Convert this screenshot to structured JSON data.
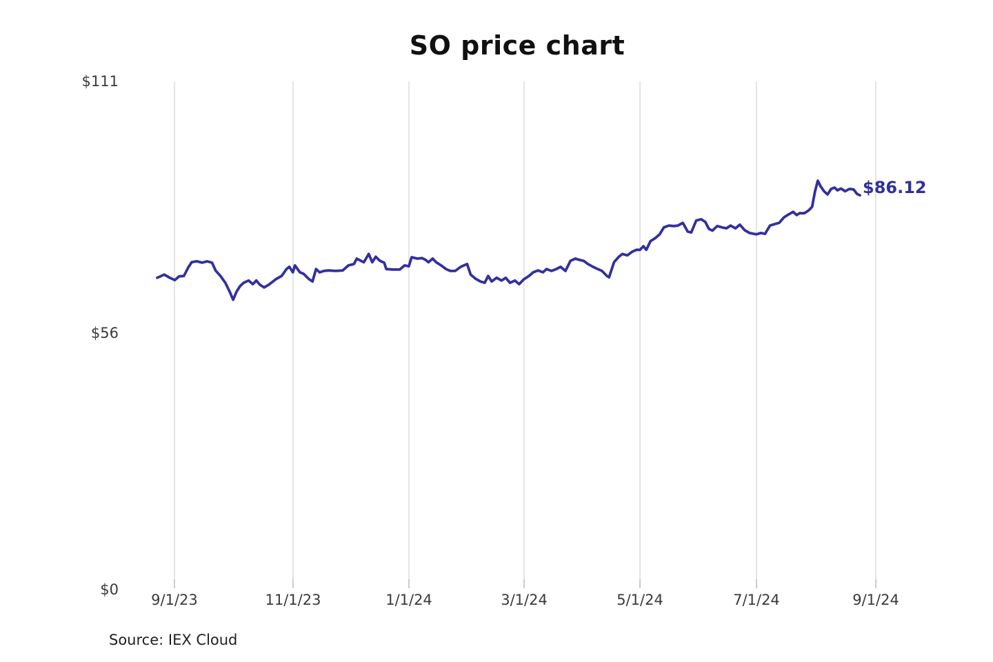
{
  "page": {
    "title": "SO price chart",
    "source": "Source: IEX Cloud"
  },
  "chart_data": {
    "type": "line",
    "title": "SO price chart",
    "source": "Source: IEX Cloud",
    "ticker": "SO",
    "line_color": "#32309e",
    "grid": "vertical-only",
    "gridline_color": "#cbcbcb",
    "tick_color": "#999999",
    "ylim": [
      0,
      111
    ],
    "y_ticks": [
      {
        "label": "$111",
        "value": 111
      },
      {
        "label": "$56",
        "value": 56
      },
      {
        "label": "$0",
        "value": 0
      }
    ],
    "x_ticks": [
      {
        "label": "9/1/23",
        "f": 0.0245
      },
      {
        "label": "11/1/23",
        "f": 0.1933
      },
      {
        "label": "1/1/24",
        "f": 0.3582
      },
      {
        "label": "3/1/24",
        "f": 0.5221
      },
      {
        "label": "5/1/24",
        "f": 0.687
      },
      {
        "label": "7/1/24",
        "f": 0.8528
      },
      {
        "label": "9/1/24",
        "f": 1.0226
      }
    ],
    "last_value": 86.12,
    "last_value_label": "$86.12",
    "series": [
      {
        "name": "SO price",
        "points": [
          [
            0.0,
            68.1
          ],
          [
            0.01,
            68.8
          ],
          [
            0.018,
            68.1
          ],
          [
            0.025,
            67.6
          ],
          [
            0.031,
            68.4
          ],
          [
            0.038,
            68.5
          ],
          [
            0.044,
            70.3
          ],
          [
            0.049,
            71.5
          ],
          [
            0.056,
            71.7
          ],
          [
            0.064,
            71.4
          ],
          [
            0.071,
            71.7
          ],
          [
            0.078,
            71.4
          ],
          [
            0.083,
            69.7
          ],
          [
            0.09,
            68.5
          ],
          [
            0.097,
            67.0
          ],
          [
            0.103,
            65.1
          ],
          [
            0.108,
            63.3
          ],
          [
            0.113,
            65.1
          ],
          [
            0.118,
            66.3
          ],
          [
            0.123,
            67.0
          ],
          [
            0.13,
            67.5
          ],
          [
            0.136,
            66.7
          ],
          [
            0.141,
            67.5
          ],
          [
            0.146,
            66.6
          ],
          [
            0.152,
            66.0
          ],
          [
            0.159,
            66.6
          ],
          [
            0.169,
            67.8
          ],
          [
            0.177,
            68.5
          ],
          [
            0.184,
            70.0
          ],
          [
            0.188,
            70.5
          ],
          [
            0.193,
            69.3
          ],
          [
            0.196,
            70.8
          ],
          [
            0.203,
            69.3
          ],
          [
            0.208,
            69.0
          ],
          [
            0.216,
            67.8
          ],
          [
            0.221,
            67.3
          ],
          [
            0.226,
            70.0
          ],
          [
            0.231,
            69.3
          ],
          [
            0.237,
            69.6
          ],
          [
            0.244,
            69.7
          ],
          [
            0.254,
            69.6
          ],
          [
            0.264,
            69.7
          ],
          [
            0.272,
            70.8
          ],
          [
            0.28,
            71.1
          ],
          [
            0.284,
            72.3
          ],
          [
            0.29,
            71.8
          ],
          [
            0.294,
            71.5
          ],
          [
            0.301,
            73.3
          ],
          [
            0.306,
            71.5
          ],
          [
            0.311,
            72.7
          ],
          [
            0.317,
            71.8
          ],
          [
            0.323,
            71.4
          ],
          [
            0.326,
            70.0
          ],
          [
            0.336,
            69.9
          ],
          [
            0.345,
            69.9
          ],
          [
            0.352,
            70.8
          ],
          [
            0.358,
            70.6
          ],
          [
            0.362,
            72.6
          ],
          [
            0.37,
            72.3
          ],
          [
            0.377,
            72.4
          ],
          [
            0.382,
            72.0
          ],
          [
            0.386,
            71.5
          ],
          [
            0.392,
            72.3
          ],
          [
            0.397,
            71.5
          ],
          [
            0.404,
            70.8
          ],
          [
            0.411,
            70.0
          ],
          [
            0.417,
            69.6
          ],
          [
            0.424,
            69.6
          ],
          [
            0.432,
            70.5
          ],
          [
            0.441,
            71.1
          ],
          [
            0.446,
            68.8
          ],
          [
            0.453,
            67.9
          ],
          [
            0.46,
            67.3
          ],
          [
            0.466,
            67.0
          ],
          [
            0.471,
            68.5
          ],
          [
            0.476,
            67.3
          ],
          [
            0.483,
            68.1
          ],
          [
            0.49,
            67.5
          ],
          [
            0.496,
            68.1
          ],
          [
            0.502,
            67.0
          ],
          [
            0.509,
            67.5
          ],
          [
            0.515,
            66.7
          ],
          [
            0.522,
            67.8
          ],
          [
            0.529,
            68.5
          ],
          [
            0.535,
            69.3
          ],
          [
            0.542,
            69.7
          ],
          [
            0.549,
            69.3
          ],
          [
            0.554,
            70.0
          ],
          [
            0.561,
            69.6
          ],
          [
            0.568,
            70.0
          ],
          [
            0.574,
            70.5
          ],
          [
            0.581,
            69.6
          ],
          [
            0.588,
            71.8
          ],
          [
            0.595,
            72.3
          ],
          [
            0.601,
            72.0
          ],
          [
            0.607,
            71.8
          ],
          [
            0.613,
            71.1
          ],
          [
            0.62,
            70.5
          ],
          [
            0.627,
            70.0
          ],
          [
            0.633,
            69.6
          ],
          [
            0.64,
            68.5
          ],
          [
            0.643,
            68.2
          ],
          [
            0.65,
            71.5
          ],
          [
            0.657,
            72.7
          ],
          [
            0.662,
            73.3
          ],
          [
            0.669,
            73.0
          ],
          [
            0.676,
            73.8
          ],
          [
            0.682,
            74.2
          ],
          [
            0.687,
            74.2
          ],
          [
            0.692,
            75.0
          ],
          [
            0.696,
            74.2
          ],
          [
            0.702,
            76.1
          ],
          [
            0.709,
            76.8
          ],
          [
            0.715,
            77.6
          ],
          [
            0.721,
            79.1
          ],
          [
            0.728,
            79.5
          ],
          [
            0.735,
            79.4
          ],
          [
            0.741,
            79.5
          ],
          [
            0.748,
            80.1
          ],
          [
            0.755,
            78.2
          ],
          [
            0.76,
            78.0
          ],
          [
            0.767,
            80.6
          ],
          [
            0.774,
            80.9
          ],
          [
            0.78,
            80.3
          ],
          [
            0.785,
            78.8
          ],
          [
            0.79,
            78.4
          ],
          [
            0.797,
            79.4
          ],
          [
            0.804,
            79.1
          ],
          [
            0.81,
            78.9
          ],
          [
            0.816,
            79.5
          ],
          [
            0.823,
            78.9
          ],
          [
            0.829,
            79.7
          ],
          [
            0.836,
            78.5
          ],
          [
            0.843,
            77.9
          ],
          [
            0.849,
            77.7
          ],
          [
            0.853,
            77.6
          ],
          [
            0.859,
            77.9
          ],
          [
            0.865,
            77.7
          ],
          [
            0.872,
            79.5
          ],
          [
            0.878,
            79.8
          ],
          [
            0.885,
            80.1
          ],
          [
            0.892,
            81.3
          ],
          [
            0.898,
            81.9
          ],
          [
            0.905,
            82.5
          ],
          [
            0.91,
            81.8
          ],
          [
            0.914,
            82.2
          ],
          [
            0.921,
            82.2
          ],
          [
            0.927,
            82.8
          ],
          [
            0.932,
            83.6
          ],
          [
            0.936,
            86.9
          ],
          [
            0.94,
            89.3
          ],
          [
            0.944,
            88.1
          ],
          [
            0.949,
            87.0
          ],
          [
            0.954,
            86.3
          ],
          [
            0.959,
            87.5
          ],
          [
            0.964,
            87.8
          ],
          [
            0.968,
            87.2
          ],
          [
            0.973,
            87.6
          ],
          [
            0.979,
            87.0
          ],
          [
            0.985,
            87.5
          ],
          [
            0.991,
            87.4
          ],
          [
            0.996,
            86.4
          ],
          [
            1.0,
            86.12
          ]
        ]
      }
    ]
  }
}
